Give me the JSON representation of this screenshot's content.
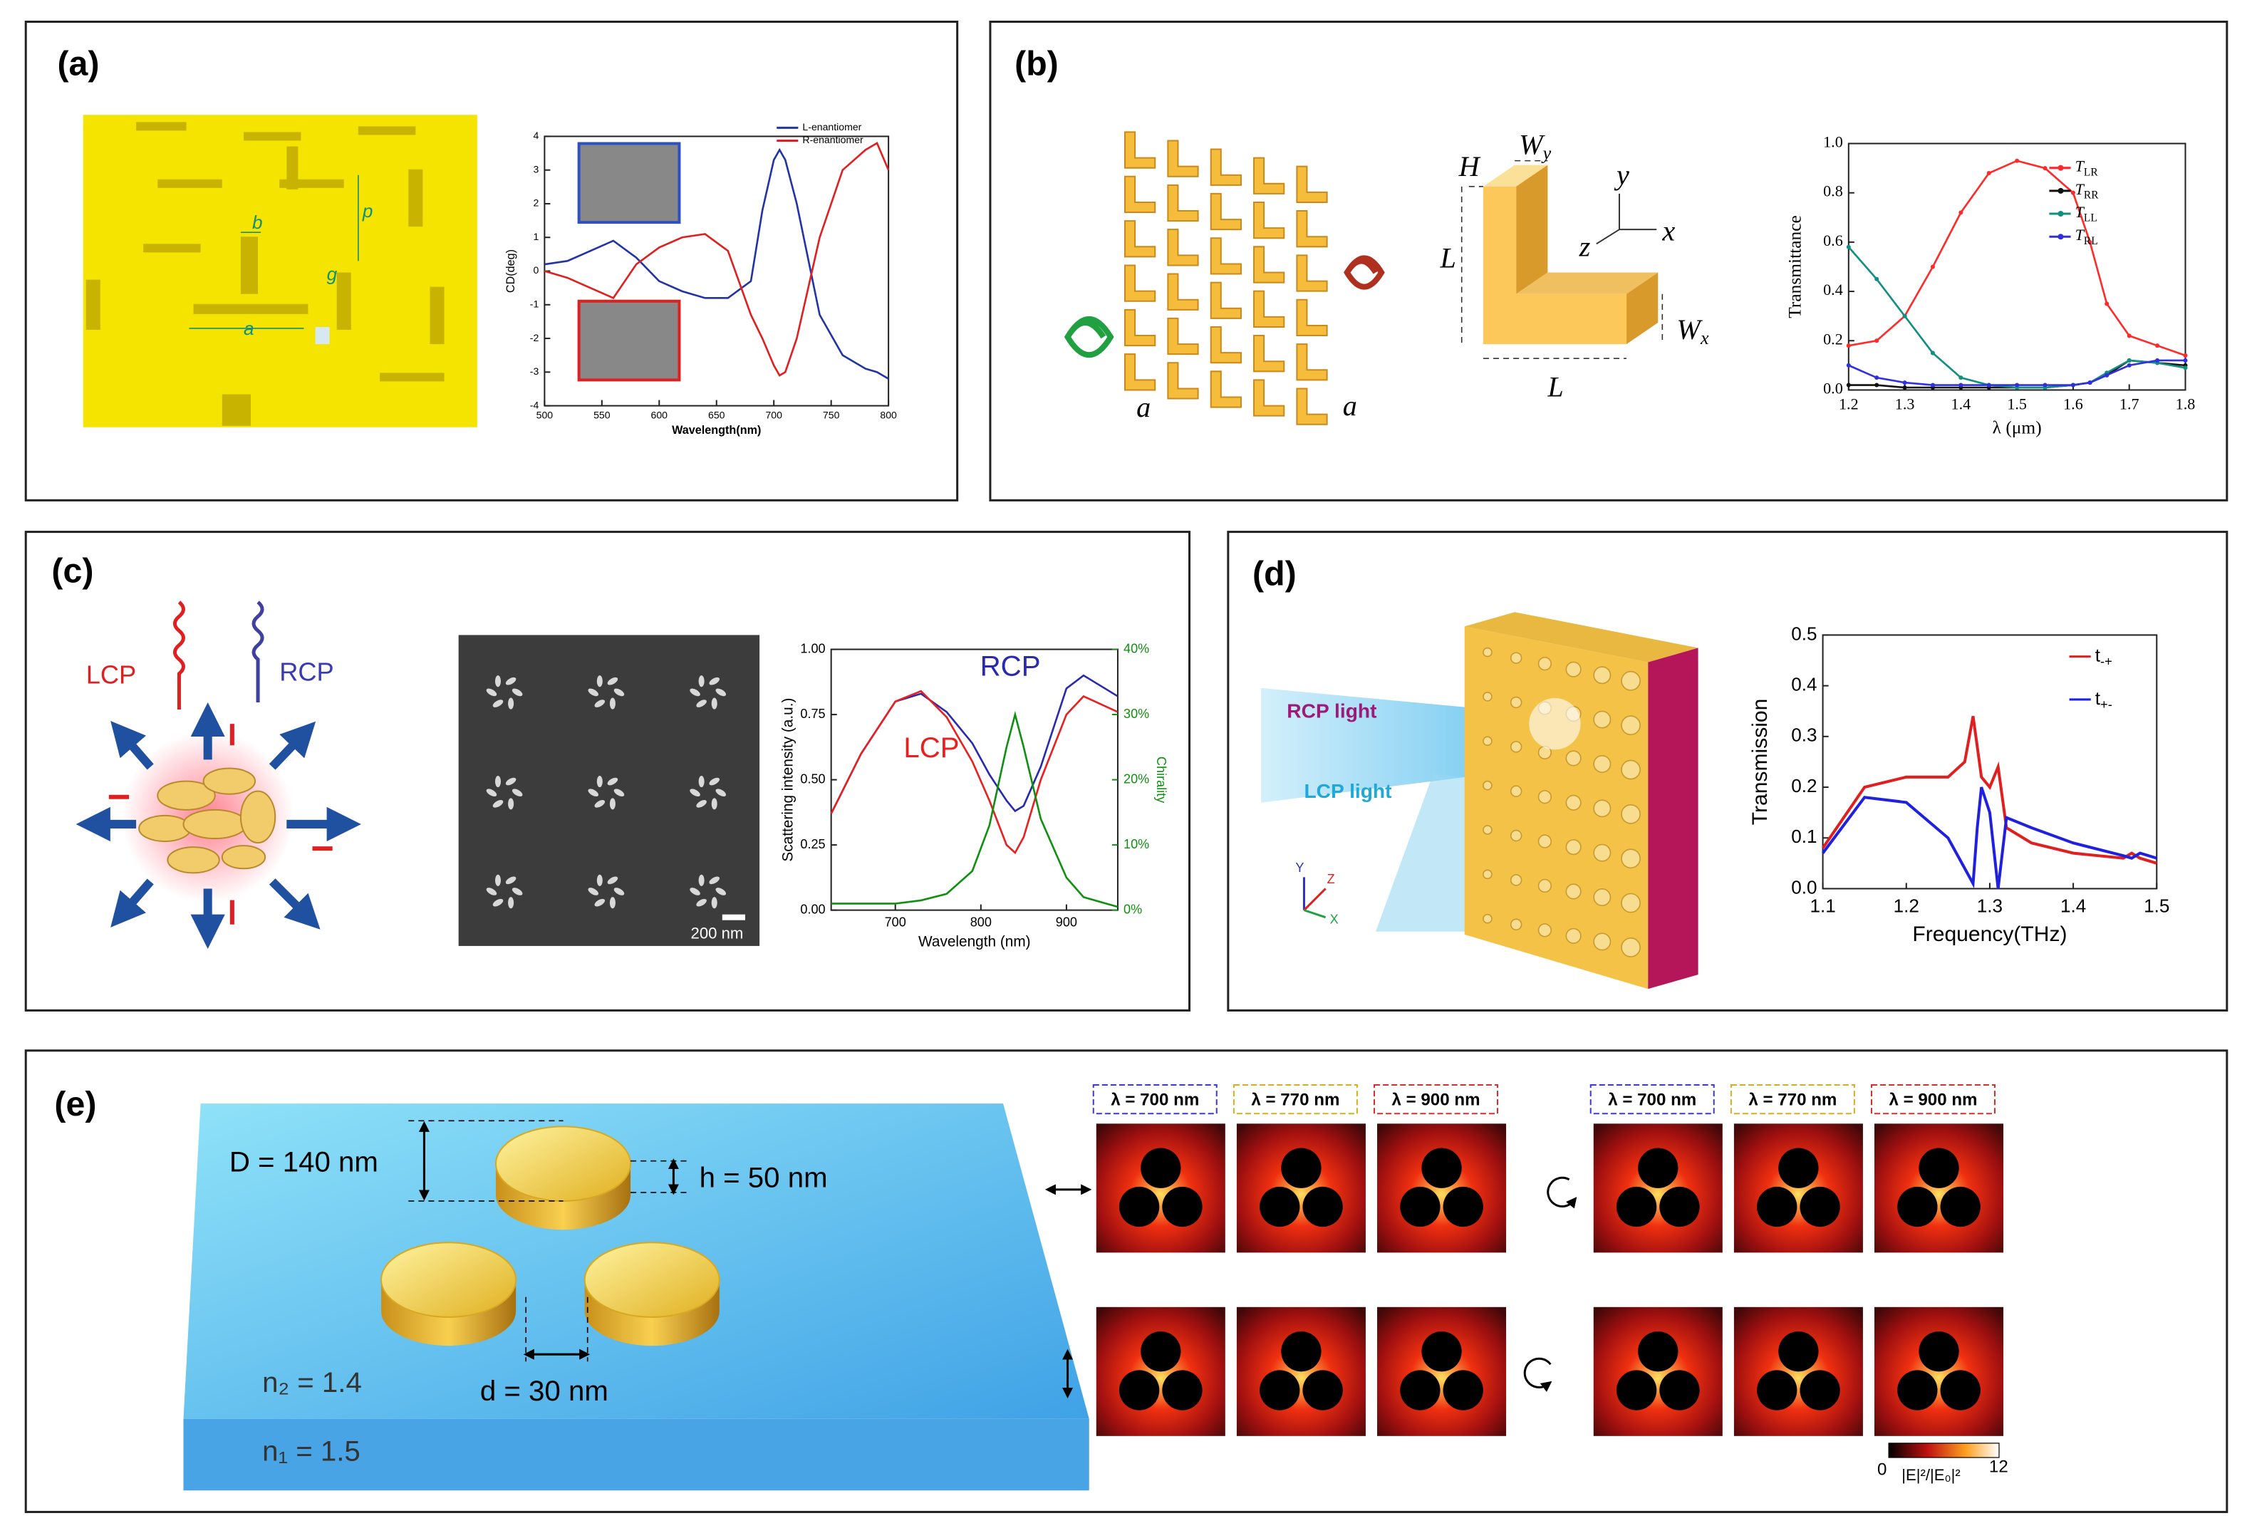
{
  "chart_data": [
    {
      "type": "line",
      "xlabel": "Wavelength(nm)",
      "ylabel": "CD(deg)",
      "x": [
        500,
        520,
        540,
        560,
        580,
        600,
        620,
        640,
        660,
        680,
        690,
        700,
        705,
        710,
        720,
        740,
        760,
        780,
        790,
        800
      ],
      "xlim": [
        500,
        800
      ],
      "xticks": [
        500,
        550,
        600,
        650,
        700,
        750,
        800
      ],
      "ylim": [
        -4,
        4
      ],
      "yticks": [
        -4,
        -3,
        -2,
        -1,
        0,
        1,
        2,
        3,
        4
      ],
      "series": [
        {
          "name": "L-enantiomer",
          "color": "#2233a8",
          "values": [
            0.2,
            0.3,
            0.6,
            0.9,
            0.4,
            -0.3,
            -0.6,
            -0.8,
            -0.8,
            -0.3,
            1.8,
            3.3,
            3.6,
            3.3,
            2.0,
            -1.3,
            -2.5,
            -2.9,
            -3.0,
            -3.2
          ]
        },
        {
          "name": "R-enantiomer",
          "color": "#e02020",
          "values": [
            0,
            -0.2,
            -0.5,
            -0.8,
            0.2,
            0.7,
            1.0,
            1.1,
            0.6,
            -1.3,
            -2.0,
            -2.8,
            -3.1,
            -3.0,
            -2.0,
            1.0,
            3.0,
            3.6,
            3.8,
            3.0
          ]
        }
      ]
    },
    {
      "type": "line",
      "xlabel": "λ (μm)",
      "ylabel": "Transmittance",
      "x": [
        1.2,
        1.25,
        1.3,
        1.35,
        1.4,
        1.45,
        1.5,
        1.55,
        1.6,
        1.63,
        1.66,
        1.7,
        1.75,
        1.8
      ],
      "xlim": [
        1.2,
        1.8
      ],
      "xticks": [
        1.2,
        1.3,
        1.4,
        1.5,
        1.6,
        1.7,
        1.8
      ],
      "ylim": [
        0,
        1
      ],
      "yticks": [
        {
          "value": 0,
          "label": "0.0"
        },
        0.2,
        0.4,
        0.6,
        0.8,
        {
          "value": 1,
          "label": "1.0"
        }
      ],
      "series": [
        {
          "name": "TLR",
          "color": "#ff2a2a",
          "values": [
            0.18,
            0.2,
            0.3,
            0.5,
            0.72,
            0.88,
            0.93,
            0.9,
            0.8,
            0.6,
            0.35,
            0.22,
            0.18,
            0.14
          ]
        },
        {
          "name": "TRR",
          "color": "#111111",
          "values": [
            0.02,
            0.02,
            0.01,
            0.01,
            0.01,
            0.01,
            0.01,
            0.01,
            0.02,
            0.03,
            0.06,
            0.12,
            0.11,
            0.1
          ]
        },
        {
          "name": "TLL",
          "color": "#109080",
          "values": [
            0.58,
            0.45,
            0.3,
            0.15,
            0.05,
            0.02,
            0.01,
            0.01,
            0.02,
            0.03,
            0.07,
            0.12,
            0.11,
            0.09
          ]
        },
        {
          "name": "TRL",
          "color": "#3030e0",
          "values": [
            0.1,
            0.05,
            0.03,
            0.02,
            0.02,
            0.02,
            0.02,
            0.02,
            0.02,
            0.03,
            0.06,
            0.1,
            0.12,
            0.12
          ]
        }
      ]
    },
    {
      "type": "line",
      "xlabel": "Wavelength (nm)",
      "ylabel": "Scattering intensity (a.u.)",
      "y2label": "Chirality",
      "x": [
        625,
        660,
        700,
        730,
        760,
        790,
        810,
        830,
        840,
        850,
        870,
        900,
        920,
        960
      ],
      "xlim": [
        625,
        960
      ],
      "xticks": [
        700,
        800,
        900
      ],
      "ylim": [
        0,
        1
      ],
      "yticks": [
        {
          "value": 0,
          "label": "0.00"
        },
        {
          "value": 0.25,
          "label": "0.25"
        },
        {
          "value": 0.5,
          "label": "0.50"
        },
        {
          "value": 0.75,
          "label": "0.75"
        },
        {
          "value": 1,
          "label": "1.00"
        }
      ],
      "y2lim": [
        0,
        40
      ],
      "y2ticks": [
        {
          "value": 0,
          "label": "0%"
        },
        {
          "value": 10,
          "label": "10%"
        },
        {
          "value": 20,
          "label": "20%"
        },
        {
          "value": 30,
          "label": "30%"
        },
        {
          "value": 40,
          "label": "40%"
        }
      ],
      "series": [
        {
          "name": "RCP",
          "color": "#2a2ab0",
          "values": [
            0.37,
            0.6,
            0.8,
            0.83,
            0.76,
            0.64,
            0.52,
            0.42,
            0.38,
            0.4,
            0.55,
            0.85,
            0.9,
            0.82
          ]
        },
        {
          "name": "LCP",
          "color": "#e82020",
          "values": [
            0.37,
            0.6,
            0.8,
            0.84,
            0.74,
            0.57,
            0.42,
            0.25,
            0.22,
            0.28,
            0.5,
            0.75,
            0.82,
            0.76
          ]
        },
        {
          "color": "#109010",
          "axis": "y2",
          "values": [
            1,
            1,
            1,
            1.5,
            2.5,
            6,
            13,
            25,
            30,
            25,
            14,
            5,
            2,
            0.5
          ]
        }
      ]
    },
    {
      "type": "line",
      "xlabel": "Frequency(THz)",
      "ylabel": "Transmission",
      "x": [
        1.1,
        1.15,
        1.2,
        1.25,
        1.27,
        1.28,
        1.285,
        1.29,
        1.3,
        1.31,
        1.32,
        1.35,
        1.4,
        1.46,
        1.47,
        1.48,
        1.5
      ],
      "xlim": [
        1.1,
        1.5
      ],
      "xticks": [
        1.1,
        1.2,
        1.3,
        1.4,
        1.5
      ],
      "ylim": [
        0,
        0.5
      ],
      "yticks": [
        {
          "value": 0,
          "label": "0.0"
        },
        0.1,
        0.2,
        0.3,
        0.4,
        0.5
      ],
      "series": [
        {
          "name": "t-+",
          "color": "#e02020",
          "values": [
            0.08,
            0.2,
            0.22,
            0.22,
            0.25,
            0.34,
            0.28,
            0.22,
            0.2,
            0.24,
            0.12,
            0.09,
            0.07,
            0.06,
            0.07,
            0.06,
            0.05
          ]
        },
        {
          "name": "t+-",
          "color": "#2020e0",
          "values": [
            0.07,
            0.18,
            0.17,
            0.1,
            0.04,
            0.01,
            0.12,
            0.2,
            0.15,
            0.0,
            0.14,
            0.12,
            0.09,
            0.065,
            0.06,
            0.07,
            0.06
          ]
        }
      ]
    }
  ],
  "figure": {
    "panel_labels": [
      "(a)",
      "(b)",
      "(c)",
      "(d)",
      "(e)"
    ],
    "a_labels": [
      "b",
      "p",
      "g",
      "a"
    ],
    "b_labels": [
      [
        "H"
      ],
      [
        "W",
        "y"
      ],
      [
        "y"
      ],
      [
        "z"
      ],
      [
        "x"
      ],
      [
        "L"
      ],
      [
        "L"
      ],
      [
        "W",
        "x"
      ],
      [
        "a"
      ],
      [
        "a"
      ]
    ],
    "c_labels": [
      "LCP",
      "RCP",
      "200 nm"
    ],
    "d_labels": [
      "RCP light",
      "LCP light",
      "Y",
      "Z",
      "X"
    ],
    "e_labels": [
      "D = 140 nm",
      "h = 50 nm",
      "d = 30 nm",
      "n₂ = 1.4",
      "n₁ = 1.5"
    ],
    "e_wavelengths": [
      "λ = 700 nm",
      "λ = 770 nm",
      "λ = 900 nm"
    ],
    "e_colorbar": [
      "0",
      "12",
      "|E|²/|E₀|²"
    ]
  }
}
